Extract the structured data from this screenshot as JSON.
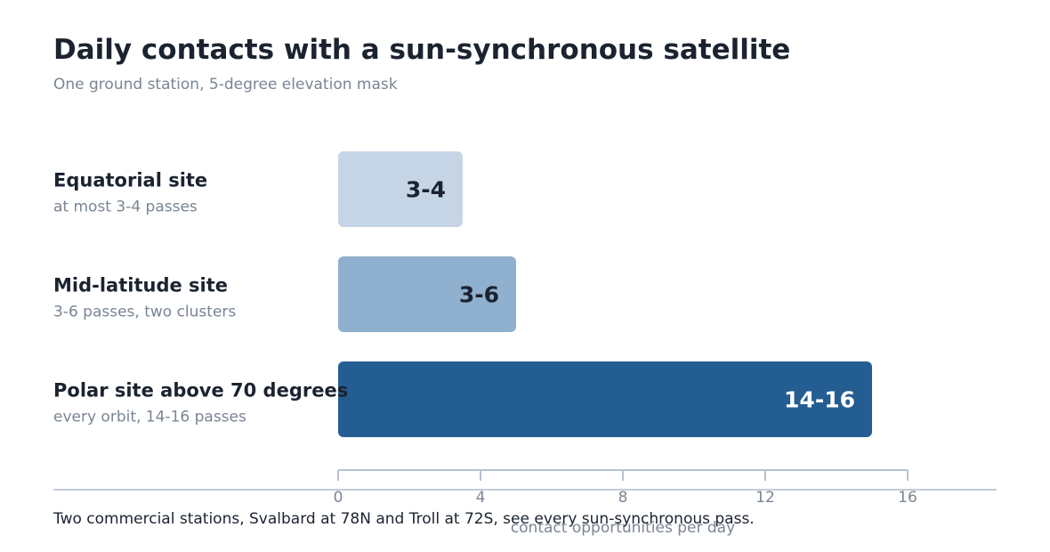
{
  "title": "Daily contacts with a sun-synchronous satellite",
  "subtitle": "One ground station, 5-degree elevation mask",
  "footer_note": "Two commercial stations, Svalbard at 78N and Troll at 72S, see every sun-synchronous pass.",
  "chart_data": {
    "type": "bar",
    "orientation": "horizontal",
    "categories": [
      "Equatorial site",
      "Mid-latitude site",
      "Polar site above 70 degrees"
    ],
    "category_notes": [
      "at most 3-4 passes",
      "3-6 passes, two clusters",
      "every orbit, 14-16 passes"
    ],
    "values": [
      3.5,
      5,
      15
    ],
    "data_labels": [
      "3-4",
      "3-6",
      "14-16"
    ],
    "bar_colors": [
      "#c6d5e6",
      "#8fb0ce",
      "#245d92"
    ],
    "label_colors": [
      "#1b2330",
      "#1b2330",
      "#ffffff"
    ],
    "xlabel": "contact opportunities per day",
    "xlim": [
      0,
      16
    ],
    "xticks": [
      0,
      4,
      8,
      12,
      16
    ],
    "xtick_labels": [
      "0",
      "4",
      "8",
      "12",
      "16"
    ],
    "grid": false,
    "legend": "none"
  }
}
